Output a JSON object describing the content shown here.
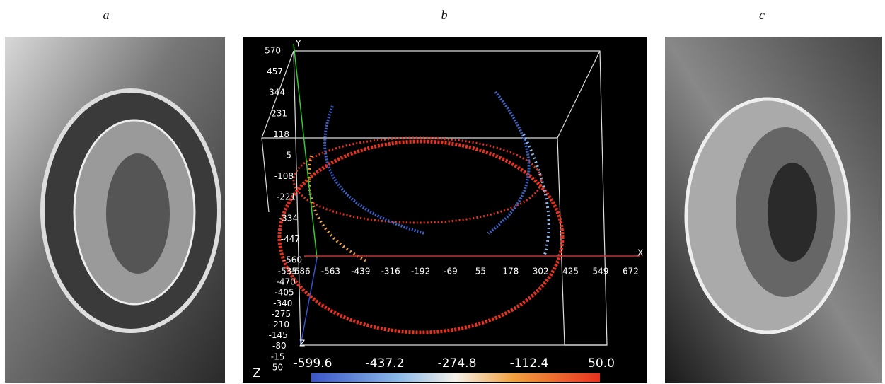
{
  "labels": [
    "a",
    "b",
    "c"
  ],
  "point_cloud": {
    "y_axis": "Y",
    "y_ticks": [
      "570",
      "457",
      "344",
      "231",
      "118",
      "5",
      "-108",
      "-221",
      "-334",
      "-447",
      "-560"
    ],
    "x_axis": "X",
    "x_ticks": [
      "-686",
      "-563",
      "-439",
      "-316",
      "-192",
      "-69",
      "55",
      "178",
      "302",
      "425",
      "549",
      "672"
    ],
    "z_axis": "Z",
    "z_ticks": [
      "-535",
      "-470",
      "-405",
      "-340",
      "-275",
      "-210",
      "-145",
      "-80",
      "-15",
      "50"
    ],
    "colorbar": {
      "title": "Z",
      "ticks": [
        "-599.6",
        "-437.2",
        "-274.8",
        "-112.4",
        "50.0"
      ]
    }
  }
}
